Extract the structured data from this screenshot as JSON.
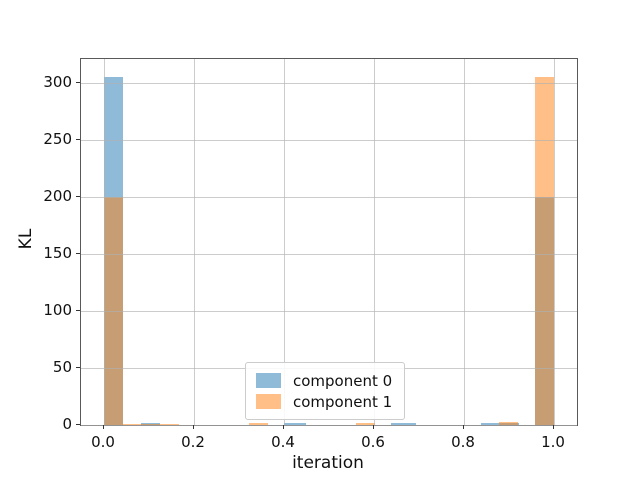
{
  "window": {
    "title": "KL histogram figure"
  },
  "chart_data": {
    "type": "bar",
    "title": "",
    "xlabel": "iteration",
    "ylabel": "KL",
    "xlim": [
      -0.051,
      1.051
    ],
    "ylim": [
      0,
      321
    ],
    "grid": true,
    "legend_position": "lower-center-inside",
    "xticks": {
      "values": [
        0.0,
        0.2,
        0.4,
        0.6,
        0.8,
        1.0
      ],
      "labels": [
        "0.0",
        "0.2",
        "0.4",
        "0.6",
        "0.8",
        "1.0"
      ]
    },
    "yticks": {
      "values": [
        0,
        50,
        100,
        150,
        200,
        250,
        300
      ],
      "labels": [
        "0",
        "50",
        "100",
        "150",
        "200",
        "250",
        "300"
      ]
    },
    "series": [
      {
        "name": "component 0",
        "color": "#1f77b4",
        "fill_alpha": 0.5,
        "bars": [
          {
            "x0": 0.0,
            "x1": 0.042,
            "value": 305
          },
          {
            "x0": 0.083,
            "x1": 0.125,
            "value": 2
          },
          {
            "x0": 0.4,
            "x1": 0.449,
            "value": 2
          },
          {
            "x0": 0.638,
            "x1": 0.693,
            "value": 2
          },
          {
            "x0": 0.838,
            "x1": 0.922,
            "value": 1.5
          },
          {
            "x0": 0.958,
            "x1": 1.0,
            "value": 200
          }
        ]
      },
      {
        "name": "component 1",
        "color": "#ff7f0e",
        "fill_alpha": 0.5,
        "bars": [
          {
            "x0": 0.0,
            "x1": 0.042,
            "value": 200
          },
          {
            "x0": 0.042,
            "x1": 0.167,
            "value": 1.2
          },
          {
            "x0": 0.322,
            "x1": 0.364,
            "value": 1.5
          },
          {
            "x0": 0.56,
            "x1": 0.602,
            "value": 2
          },
          {
            "x0": 0.878,
            "x1": 0.92,
            "value": 3
          },
          {
            "x0": 0.958,
            "x1": 1.0,
            "value": 305
          }
        ]
      }
    ],
    "colors": {
      "grid": "#b0b0b0",
      "spine": "#595959",
      "tick": "#333333",
      "legend_border": "#cccccc"
    }
  },
  "legend": {
    "entries": [
      {
        "label": "component 0",
        "color": "#1f77b4"
      },
      {
        "label": "component 1",
        "color": "#ff7f0e"
      }
    ]
  },
  "labels": {
    "xlabel": "iteration",
    "ylabel": "KL"
  }
}
